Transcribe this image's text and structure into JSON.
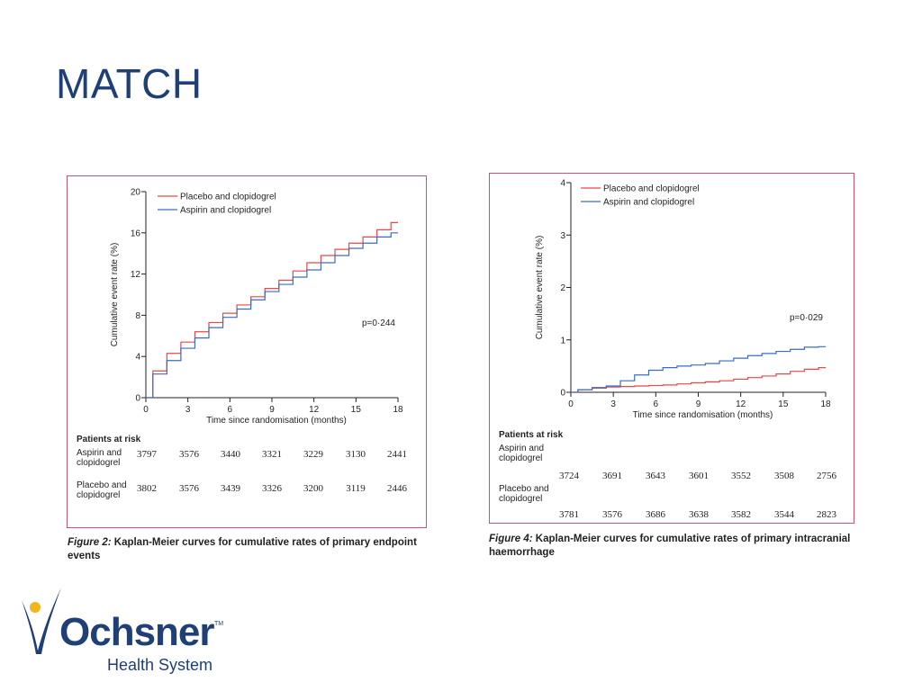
{
  "slide": {
    "title": "MATCH"
  },
  "figure_left": {
    "p_value": "p=0·244",
    "caption_label": "Figure 2:",
    "caption_text": "Kaplan-Meier curves for cumulative rates of primary endpoint events",
    "risk": {
      "title": "Patients at risk",
      "rows": [
        {
          "label": "Aspirin and clopidogrel",
          "values": [
            "3797",
            "3576",
            "3440",
            "3321",
            "3229",
            "3130",
            "2441"
          ]
        },
        {
          "label": "Placebo and clopidogrel",
          "values": [
            "3802",
            "3576",
            "3439",
            "3326",
            "3200",
            "3119",
            "2446"
          ]
        }
      ]
    }
  },
  "figure_right": {
    "p_value": "p=0·029",
    "caption_label": "Figure 4:",
    "caption_text": "Kaplan-Meier curves for cumulative rates of primary intracranial haemorrhage",
    "risk": {
      "title": "Patients at risk",
      "rows": [
        {
          "label": "Aspirin and clopidogrel",
          "values": [
            "3724",
            "3691",
            "3643",
            "3601",
            "3552",
            "3508",
            "2756"
          ]
        },
        {
          "label": "Placebo and clopidogrel",
          "values": [
            "3781",
            "3576",
            "3686",
            "3638",
            "3582",
            "3544",
            "2823"
          ]
        }
      ]
    }
  },
  "logo": {
    "brand": "Ochsner",
    "sub": "Health System",
    "tm": "TM"
  },
  "chart_data": [
    {
      "type": "line",
      "xlabel": "Time since randomisation (months)",
      "ylabel": "Cumulative event rate (%)",
      "xlim": [
        0,
        18
      ],
      "ylim": [
        0,
        20
      ],
      "xticks": [
        "0",
        "3",
        "6",
        "9",
        "12",
        "15",
        "18"
      ],
      "yticks": [
        "0",
        "4",
        "8",
        "12",
        "16",
        "20"
      ],
      "legend_position": "top-left",
      "series": [
        {
          "name": "Placebo and clopidogrel",
          "color": "#e8474c",
          "x": [
            0,
            1,
            2,
            3,
            4,
            5,
            6,
            7,
            8,
            9,
            10,
            11,
            12,
            13,
            14,
            15,
            16,
            17,
            18
          ],
          "y": [
            0,
            2.6,
            4.3,
            5.4,
            6.4,
            7.3,
            8.2,
            9.0,
            9.8,
            10.6,
            11.4,
            12.3,
            13.1,
            13.8,
            14.4,
            15.0,
            15.6,
            16.3,
            17.0
          ]
        },
        {
          "name": "Aspirin and clopidogrel",
          "color": "#3a6cc0",
          "x": [
            0,
            1,
            2,
            3,
            4,
            5,
            6,
            7,
            8,
            9,
            10,
            11,
            12,
            13,
            14,
            15,
            16,
            17,
            18
          ],
          "y": [
            0,
            2.3,
            3.6,
            4.8,
            5.8,
            6.8,
            7.8,
            8.6,
            9.5,
            10.3,
            11.0,
            11.7,
            12.4,
            13.1,
            13.8,
            14.5,
            15.0,
            15.6,
            16.0
          ]
        }
      ]
    },
    {
      "type": "line",
      "xlabel": "Time since randomisation (months)",
      "ylabel": "Cumulative event rate (%)",
      "xlim": [
        0,
        18
      ],
      "ylim": [
        0,
        4
      ],
      "xticks": [
        "0",
        "3",
        "6",
        "9",
        "12",
        "15",
        "18"
      ],
      "yticks": [
        "0",
        "1",
        "2",
        "3",
        "4"
      ],
      "legend_position": "top-left",
      "series": [
        {
          "name": "Placebo and clopidogrel",
          "color": "#e8474c",
          "x": [
            0,
            1,
            2,
            3,
            4,
            5,
            6,
            7,
            8,
            9,
            10,
            11,
            12,
            13,
            14,
            15,
            16,
            17,
            18
          ],
          "y": [
            0,
            0.05,
            0.08,
            0.1,
            0.11,
            0.12,
            0.13,
            0.14,
            0.16,
            0.18,
            0.2,
            0.22,
            0.25,
            0.28,
            0.31,
            0.35,
            0.4,
            0.44,
            0.47
          ]
        },
        {
          "name": "Aspirin and clopidogrel",
          "color": "#3a6cc0",
          "x": [
            0,
            1,
            2,
            3,
            4,
            5,
            6,
            7,
            8,
            9,
            10,
            11,
            12,
            13,
            14,
            15,
            16,
            17,
            18
          ],
          "y": [
            0,
            0.05,
            0.09,
            0.12,
            0.22,
            0.33,
            0.42,
            0.47,
            0.5,
            0.52,
            0.55,
            0.6,
            0.65,
            0.7,
            0.74,
            0.78,
            0.82,
            0.86,
            0.87
          ]
        }
      ]
    }
  ]
}
